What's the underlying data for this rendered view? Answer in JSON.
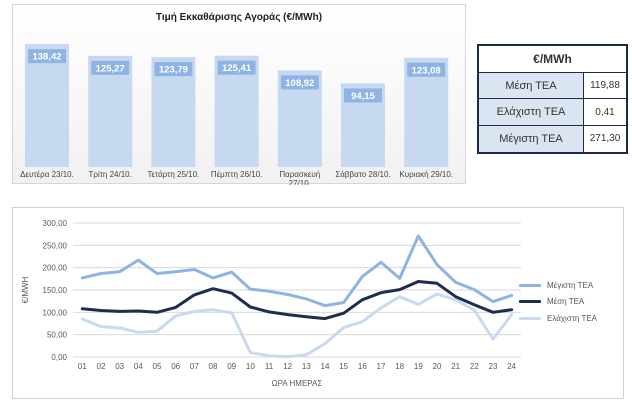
{
  "bar_chart": {
    "title": "Τιμή Εκκαθάρισης Αγοράς (€/MWh)",
    "colors": {
      "bar": "#c6d9f1",
      "label_bg": "#8fb4e3",
      "label_text": "#ffffff"
    }
  },
  "stats": {
    "header": "€/MWh",
    "rows": [
      {
        "label": "Μέση ΤΕΑ",
        "value": "119,88"
      },
      {
        "label": "Ελάχιστη ΤΕΑ",
        "value": "0,41"
      },
      {
        "label": "Μέγιστη ΤΕΑ",
        "value": "271,30"
      }
    ]
  },
  "line_chart": {
    "xlabel": "ΩΡΑ ΗΜΕΡΑΣ",
    "ylabel": "€/MWH",
    "yticks": [
      "0,00",
      "50,00",
      "100,00",
      "150,00",
      "200,00",
      "250,00",
      "300,00"
    ]
  },
  "chart_data": [
    {
      "type": "bar",
      "title": "Τιμή Εκκαθάρισης Αγοράς (€/MWh)",
      "categories": [
        "Δευτέρα 23/10.",
        "Τρίτη 24/10.",
        "Τετάρτη 25/10.",
        "Πέμπτη 26/10.",
        "Παρασκευή 27/10.",
        "Σάββατο 28/10.",
        "Κυριακή 29/10."
      ],
      "values": [
        138.42,
        125.27,
        123.79,
        125.41,
        108.92,
        94.15,
        123.08
      ],
      "value_labels": [
        "138,42",
        "125,27",
        "123,79",
        "125,41",
        "108,92",
        "94,15",
        "123,08"
      ],
      "ylim": [
        0,
        160
      ],
      "grid": false
    },
    {
      "type": "line",
      "x": [
        "01",
        "02",
        "03",
        "04",
        "05",
        "06",
        "07",
        "08",
        "09",
        "10",
        "11",
        "12",
        "13",
        "14",
        "15",
        "16",
        "17",
        "18",
        "19",
        "20",
        "21",
        "22",
        "23",
        "24"
      ],
      "xlabel": "ΩΡΑ ΗΜΕΡΑΣ",
      "ylabel": "€/MWH",
      "ylim": [
        0,
        300
      ],
      "grid": true,
      "legend": "right",
      "series": [
        {
          "name": "Μέγιστη ΤΕΑ",
          "color": "#8eb4e3",
          "width": 3,
          "values": [
            177,
            187,
            191,
            217,
            187,
            191,
            196,
            177,
            190,
            152,
            147,
            140,
            130,
            115,
            122,
            180,
            212,
            176,
            271,
            207,
            167,
            151,
            124,
            138
          ]
        },
        {
          "name": "Μέση ΤΕΑ",
          "color": "#1f2d4d",
          "width": 3,
          "values": [
            108,
            104,
            102,
            103,
            100,
            111,
            139,
            153,
            143,
            112,
            101,
            95,
            90,
            86,
            98,
            128,
            144,
            151,
            169,
            165,
            135,
            117,
            100,
            106
          ]
        },
        {
          "name": "Ελάχιστη ΤΕΑ",
          "color": "#c9daf0",
          "width": 3,
          "values": [
            85,
            68,
            65,
            55,
            58,
            92,
            102,
            106,
            99,
            10,
            3,
            0.41,
            5,
            30,
            66,
            79,
            110,
            135,
            118,
            141,
            128,
            105,
            40,
            95
          ]
        }
      ]
    }
  ]
}
